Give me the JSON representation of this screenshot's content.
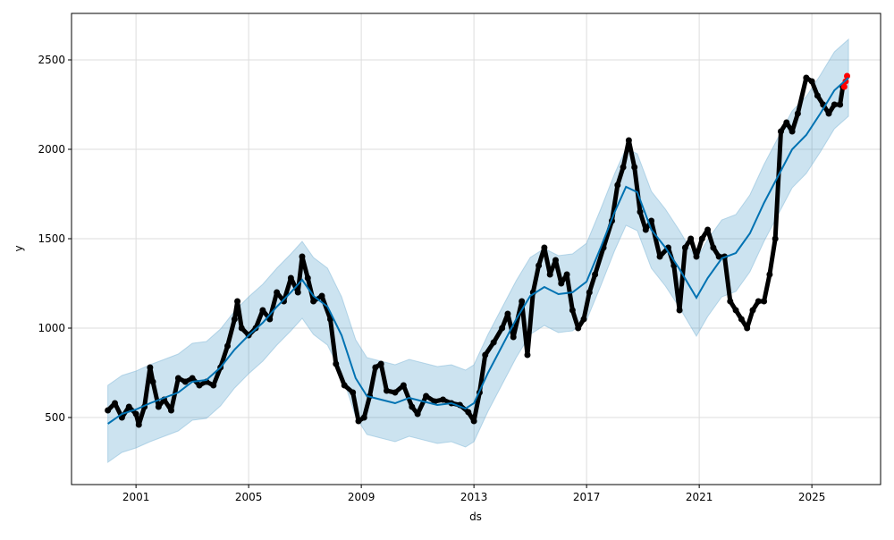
{
  "chart_data": {
    "type": "line",
    "title": "",
    "xlabel": "ds",
    "ylabel": "y",
    "xlim": [
      1998.71,
      2027.44
    ],
    "ylim": [
      125,
      2760
    ],
    "grid": true,
    "x_ticks": [
      2001,
      2005,
      2009,
      2013,
      2017,
      2021,
      2025
    ],
    "x_tick_labels": [
      "2001",
      "2005",
      "2009",
      "2013",
      "2017",
      "2021",
      "2025"
    ],
    "y_ticks": [
      500,
      1000,
      1500,
      2000,
      2500
    ],
    "y_tick_labels": [
      "500",
      "1000",
      "1500",
      "2000",
      "2500"
    ],
    "colors": {
      "forecast": "#0072B2",
      "interval": "#0072B2",
      "observed": "#000000",
      "highlight": "#ff0000",
      "grid": "#dddddd"
    },
    "forecast": {
      "x": [
        2000.0,
        2000.5,
        2001.0,
        2001.5,
        2002.0,
        2002.5,
        2003.0,
        2003.5,
        2004.0,
        2004.5,
        2005.0,
        2005.5,
        2006.0,
        2006.5,
        2006.9,
        2007.3,
        2007.8,
        2008.3,
        2008.8,
        2009.2,
        2009.7,
        2010.2,
        2010.7,
        2011.2,
        2011.7,
        2012.2,
        2012.7,
        2013.0,
        2013.5,
        2014.0,
        2014.5,
        2015.0,
        2015.5,
        2016.0,
        2016.5,
        2017.0,
        2017.5,
        2018.0,
        2018.4,
        2018.8,
        2019.3,
        2019.8,
        2020.3,
        2020.9,
        2021.3,
        2021.8,
        2022.3,
        2022.8,
        2023.3,
        2023.8,
        2024.3,
        2024.8,
        2025.3,
        2025.8,
        2026.3
      ],
      "yhat": [
        465,
        520,
        545,
        580,
        610,
        640,
        700,
        710,
        780,
        880,
        960,
        1030,
        1120,
        1200,
        1270,
        1180,
        1120,
        960,
        720,
        620,
        600,
        580,
        610,
        590,
        570,
        580,
        550,
        580,
        750,
        900,
        1050,
        1180,
        1230,
        1190,
        1200,
        1260,
        1450,
        1650,
        1790,
        1760,
        1550,
        1450,
        1330,
        1170,
        1280,
        1390,
        1420,
        1530,
        1700,
        1850,
        2000,
        2080,
        2200,
        2330,
        2400
      ],
      "yhat_lower": [
        250,
        305,
        330,
        365,
        395,
        425,
        485,
        495,
        565,
        665,
        745,
        815,
        905,
        985,
        1055,
        965,
        905,
        745,
        505,
        405,
        385,
        365,
        395,
        375,
        355,
        365,
        335,
        365,
        535,
        685,
        835,
        965,
        1015,
        975,
        985,
        1045,
        1235,
        1435,
        1575,
        1545,
        1335,
        1235,
        1115,
        955,
        1065,
        1175,
        1205,
        1315,
        1485,
        1635,
        1785,
        1865,
        1985,
        2115,
        2185
      ],
      "yhat_upper": [
        680,
        735,
        760,
        795,
        825,
        855,
        915,
        925,
        995,
        1095,
        1175,
        1245,
        1335,
        1415,
        1485,
        1395,
        1335,
        1175,
        935,
        835,
        815,
        795,
        825,
        805,
        785,
        795,
        765,
        795,
        965,
        1115,
        1265,
        1395,
        1445,
        1405,
        1415,
        1475,
        1665,
        1865,
        2005,
        1975,
        1765,
        1665,
        1545,
        1385,
        1495,
        1605,
        1635,
        1745,
        1915,
        2065,
        2215,
        2295,
        2415,
        2545,
        2615
      ]
    },
    "observed": {
      "x": [
        2000.0,
        2000.25,
        2000.5,
        2000.75,
        2001.0,
        2001.1,
        2001.3,
        2001.5,
        2001.6,
        2001.8,
        2002.0,
        2002.25,
        2002.5,
        2002.75,
        2003.0,
        2003.25,
        2003.5,
        2003.75,
        2004.0,
        2004.25,
        2004.5,
        2004.6,
        2004.75,
        2005.0,
        2005.25,
        2005.5,
        2005.75,
        2006.0,
        2006.25,
        2006.5,
        2006.75,
        2006.9,
        2007.1,
        2007.3,
        2007.6,
        2007.9,
        2008.1,
        2008.4,
        2008.7,
        2008.9,
        2009.1,
        2009.3,
        2009.5,
        2009.7,
        2009.9,
        2010.2,
        2010.5,
        2010.8,
        2011.0,
        2011.3,
        2011.6,
        2011.9,
        2012.2,
        2012.5,
        2012.8,
        2013.0,
        2013.2,
        2013.4,
        2013.7,
        2014.0,
        2014.2,
        2014.4,
        2014.7,
        2014.9,
        2015.1,
        2015.3,
        2015.5,
        2015.7,
        2015.9,
        2016.1,
        2016.3,
        2016.5,
        2016.7,
        2016.9,
        2017.1,
        2017.3,
        2017.6,
        2017.9,
        2018.1,
        2018.3,
        2018.5,
        2018.7,
        2018.9,
        2019.1,
        2019.3,
        2019.6,
        2019.9,
        2020.1,
        2020.3,
        2020.5,
        2020.7,
        2020.9,
        2021.1,
        2021.3,
        2021.5,
        2021.7,
        2021.9,
        2022.1,
        2022.3,
        2022.5,
        2022.7,
        2022.9,
        2023.1,
        2023.3,
        2023.5,
        2023.7,
        2023.9,
        2024.1,
        2024.3,
        2024.5,
        2024.8,
        2025.0,
        2025.2,
        2025.4,
        2025.6,
        2025.8,
        2026.0,
        2026.1
      ],
      "y": [
        540,
        580,
        500,
        560,
        520,
        460,
        560,
        780,
        700,
        560,
        600,
        540,
        720,
        700,
        720,
        680,
        700,
        680,
        780,
        900,
        1050,
        1150,
        1000,
        960,
        1000,
        1100,
        1050,
        1200,
        1150,
        1280,
        1200,
        1400,
        1280,
        1150,
        1180,
        1050,
        800,
        680,
        640,
        480,
        500,
        620,
        780,
        800,
        650,
        640,
        680,
        560,
        520,
        620,
        590,
        600,
        580,
        570,
        530,
        480,
        640,
        850,
        920,
        1000,
        1080,
        950,
        1150,
        850,
        1200,
        1350,
        1450,
        1300,
        1380,
        1250,
        1300,
        1100,
        1000,
        1050,
        1200,
        1300,
        1450,
        1600,
        1800,
        1900,
        2050,
        1900,
        1650,
        1550,
        1600,
        1400,
        1450,
        1350,
        1100,
        1450,
        1500,
        1400,
        1500,
        1550,
        1450,
        1400,
        1400,
        1150,
        1100,
        1050,
        1000,
        1100,
        1150,
        1150,
        1300,
        1500,
        2100,
        2150,
        2100,
        2200,
        2400,
        2380,
        2300,
        2250,
        2200,
        2250,
        2250,
        2350
      ]
    },
    "highlighted": {
      "x": [
        2026.15,
        2026.2,
        2026.25
      ],
      "y": [
        2350,
        2380,
        2410
      ]
    }
  }
}
